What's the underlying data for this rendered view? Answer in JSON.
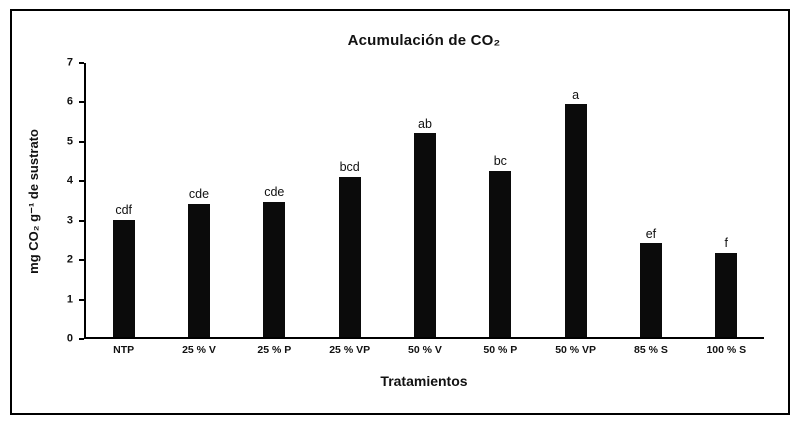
{
  "chart_data": {
    "type": "bar",
    "title": "Acumulación de CO₂",
    "xlabel": "Tratamientos",
    "ylabel": "mg CO₂ g⁻¹ de sustrato",
    "categories": [
      "NTP",
      "25 % V",
      "25 % P",
      "25 % VP",
      "50 % V",
      "50 % P",
      "50 % VP",
      "85 % S",
      "100 % S"
    ],
    "values": [
      3.0,
      3.4,
      3.45,
      4.1,
      5.2,
      4.25,
      5.95,
      2.4,
      2.15
    ],
    "bar_labels": [
      "cdf",
      "cde",
      "cde",
      "bcd",
      "ab",
      "bc",
      "a",
      "ef",
      "f"
    ],
    "ylim": [
      0,
      7
    ],
    "yticks": [
      0,
      1,
      2,
      3,
      4,
      5,
      6,
      7
    ],
    "bar_color": "#0b0b0b",
    "grid": false,
    "legend": "none"
  }
}
